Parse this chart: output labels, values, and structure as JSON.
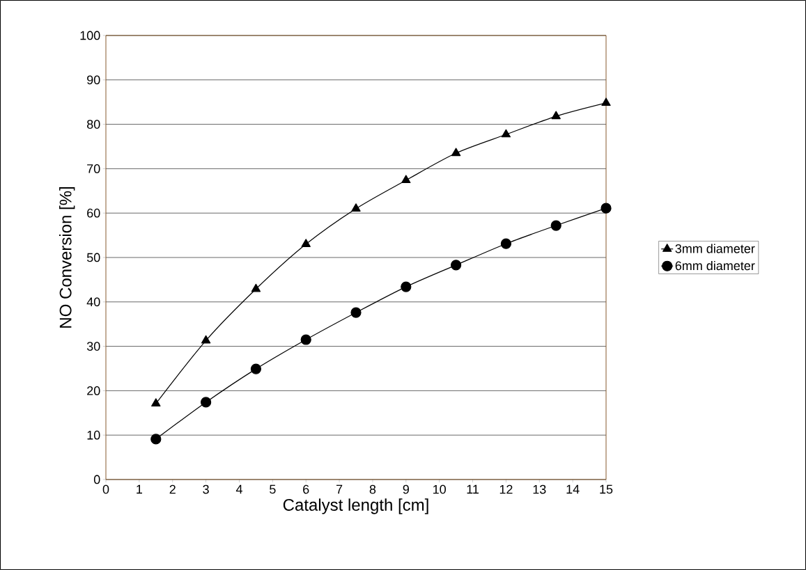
{
  "chart_data": {
    "type": "line",
    "xlabel": "Catalyst length [cm]",
    "ylabel": "NO Conversion [%]",
    "x": [
      1.5,
      3,
      4.5,
      6,
      7.5,
      9,
      10.5,
      12,
      13.5,
      15
    ],
    "series": [
      {
        "name": "3mm diameter",
        "color": "#000000",
        "marker": "triangle",
        "values": [
          17.1,
          31.3,
          42.9,
          53,
          61,
          67.4,
          73.5,
          77.7,
          81.8,
          84.8
        ]
      },
      {
        "name": "6mm diameter",
        "color": "#000000",
        "marker": "circle",
        "values": [
          9.1,
          17.4,
          24.9,
          31.5,
          37.6,
          43.4,
          48.3,
          53.1,
          57.2,
          61.1
        ]
      }
    ],
    "xlim": [
      0,
      15
    ],
    "xticks": [
      0,
      1,
      2,
      3,
      4,
      5,
      6,
      7,
      8,
      9,
      10,
      11,
      12,
      13,
      14,
      15
    ],
    "ylim": [
      0,
      100
    ],
    "yticks": [
      0,
      10,
      20,
      30,
      40,
      50,
      60,
      70,
      80,
      90,
      100
    ],
    "grid": "y",
    "legend": "right",
    "line_style": "solid"
  }
}
